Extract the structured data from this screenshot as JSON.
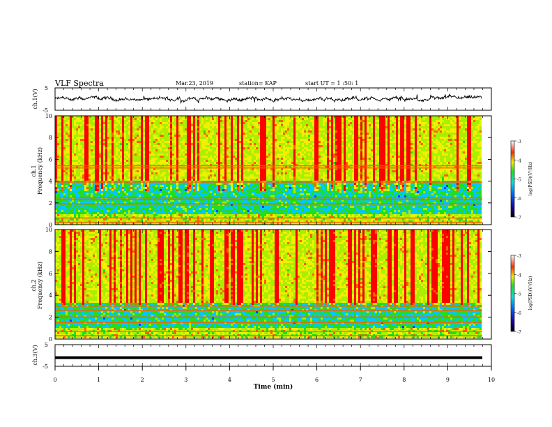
{
  "header": {
    "title": "VLF Spectra",
    "date": "Mar.23, 2019",
    "station": "station= KAP",
    "start": "start UT = 1 :50: 1"
  },
  "chart_data": [
    {
      "type": "line",
      "ylabel": "ch.1(V)",
      "yticks": [
        "5",
        "-5"
      ],
      "ylim": [
        -5,
        5
      ],
      "xlim": [
        0,
        10
      ],
      "description_values": {
        "baseline": 0.0,
        "amplitude_range": [
          -1.5,
          1.3
        ]
      }
    },
    {
      "type": "heatmap",
      "ylabel": "Frequency (kHz)",
      "channel": "ch.1",
      "xlim": [
        0,
        10
      ],
      "ylim": [
        0,
        10
      ],
      "yticks": [
        "0",
        "2",
        "4",
        "6",
        "8",
        "10"
      ],
      "colorbar": {
        "label": "log(PSD)(V²/Hz)",
        "ticks": [
          "-3",
          "-4",
          "-5",
          "-6",
          "-7"
        ],
        "range": [
          -7,
          -3
        ]
      },
      "bands_kHz": [
        0.2,
        0.6,
        1.9,
        2.3,
        2.45,
        3.9,
        5.2,
        5.4
      ]
    },
    {
      "type": "heatmap",
      "ylabel": "Frequency (kHz)",
      "channel": "ch.2",
      "xlim": [
        0,
        10
      ],
      "ylim": [
        0,
        10
      ],
      "yticks": [
        "0",
        "2",
        "4",
        "6",
        "8",
        "10"
      ],
      "colorbar": {
        "label": "log(PSD)(V²/Hz)",
        "ticks": [
          "-3",
          "-4",
          "-5",
          "-6",
          "-7"
        ],
        "range": [
          -7,
          -3
        ]
      },
      "bands_kHz": [
        0.3,
        0.7,
        1.5,
        2.0,
        2.6,
        3.0
      ]
    },
    {
      "type": "line",
      "ylabel": "ch.3(V)",
      "yticks": [
        "5",
        "-5"
      ],
      "ylim": [
        -5,
        5
      ],
      "xlim": [
        0,
        10
      ],
      "constant_value": -1
    }
  ],
  "xaxis": {
    "label": "Time (min)",
    "ticks": [
      "0",
      "1",
      "2",
      "3",
      "4",
      "5",
      "6",
      "7",
      "8",
      "9",
      "10"
    ]
  }
}
